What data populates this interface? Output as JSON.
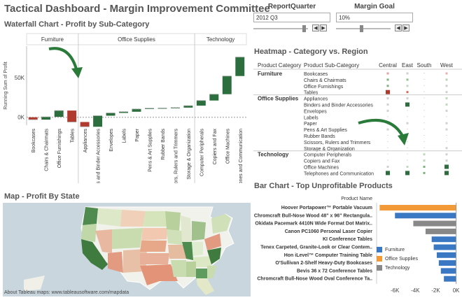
{
  "dashboard_title": "Tactical Dashboard - Margin Improvement Committee",
  "filters": {
    "report_quarter": {
      "label": "ReportQuarter",
      "value": "2012 Q3"
    },
    "margin_goal": {
      "label": "Margin Goal",
      "value": "10%"
    }
  },
  "waterfall": {
    "title": "Waterfall Chart - Profit by Sub-Category",
    "ylabel": "Running Sum of Profit",
    "categories": [
      "Furniture",
      "Office Supplies",
      "Technology"
    ]
  },
  "heatmap": {
    "title": "Heatmap - Category vs. Region",
    "col_headers": [
      "Product Category",
      "Product Sub-Category",
      "Central",
      "East",
      "South",
      "West"
    ]
  },
  "map": {
    "title": "Map - Profit By State",
    "footer": "About Tableau maps: www.tableausoftware.com/mapdata"
  },
  "bar": {
    "title": "Bar Chart - Top Unprofitable Products",
    "axis_header": "Product Name",
    "legend": [
      {
        "label": "Furniture",
        "color": "#3b78c3"
      },
      {
        "label": "Office Supplies",
        "color": "#f29a38"
      },
      {
        "label": "Technology",
        "color": "#888888"
      }
    ]
  },
  "chart_data": [
    {
      "type": "bar",
      "title": "Waterfall Chart - Profit by Sub-Category",
      "ylabel": "Running Sum of Profit",
      "ticks": [
        "0K",
        "50K"
      ],
      "groups": [
        {
          "name": "Furniture",
          "categories": [
            "Bookcases",
            "Chairs & Chairmats",
            "Office Furnishings",
            "Tables"
          ]
        },
        {
          "name": "Office Supplies",
          "categories": [
            "Appliances",
            "Binders and Binder Accessories",
            "Envelopes",
            "Labels",
            "Paper",
            "Pens & Art Supplies",
            "Rubber Bands",
            "Scissors, Rulers and Trimmers",
            "Storage & Organization"
          ]
        },
        {
          "name": "Technology",
          "categories": [
            "Computer Peripherals",
            "Copiers and Fax",
            "Office Machines",
            "Telephones and Communication"
          ]
        }
      ],
      "categories": [
        "Bookcases",
        "Chairs & Chairmats",
        "Office Furnishings",
        "Tables",
        "Appliances",
        "Binders and Binder Accessories",
        "Envelopes",
        "Labels",
        "Paper",
        "Pens & Art Supplies",
        "Rubber Bands",
        "Scissors, Rulers and Trimmers",
        "Storage & Organization",
        "Computer Peripherals",
        "Copiers and Fax",
        "Office Machines",
        "Telephones and Communication"
      ],
      "values": [
        -3000,
        3500,
        8000,
        -14500,
        -6000,
        14000,
        3500,
        1500,
        3500,
        1000,
        200,
        500,
        2500,
        6500,
        8000,
        23000,
        24000
      ],
      "colors": [
        "#b03a2e",
        "#2d6e3e",
        "#2d6e3e",
        "#b03a2e",
        "#b03a2e",
        "#2d6e3e",
        "#2d6e3e",
        "#2d6e3e",
        "#2d6e3e",
        "#2d6e3e",
        "#2d6e3e",
        "#2d6e3e",
        "#2d6e3e",
        "#2d6e3e",
        "#2d6e3e",
        "#2d6e3e",
        "#2d6e3e"
      ],
      "ylim": [
        -10000,
        90000
      ]
    },
    {
      "type": "heatmap",
      "title": "Heatmap - Category vs. Region",
      "columns": [
        "Central",
        "East",
        "South",
        "West"
      ],
      "rows": [
        {
          "category": "Furniture",
          "sub": "Bookcases",
          "cells": [
            "#e4a0a0",
            "#cfcfcf",
            "",
            "#e8b0b0"
          ]
        },
        {
          "sub": "Chairs & Chairmats",
          "cells": [
            "#7fb07f",
            "#8fbf8f",
            "",
            "#b8d3b8"
          ]
        },
        {
          "sub": "Office Furnishings",
          "cells": [
            "#7fb07f",
            "#c0d8c0",
            "",
            "#cfcfcf"
          ]
        },
        {
          "sub": "Tables",
          "cells": [
            "#b03a2e",
            "#d06a5a",
            "",
            "#cfcfcf"
          ]
        },
        {
          "category": "Office Supplies",
          "sub": "Appliances",
          "cells": [
            "#d0d0d0",
            "#d0d0d0",
            "",
            "#c0d8c0"
          ]
        },
        {
          "sub": "Binders and Binder Accessories",
          "cells": [
            "#d0d0d0",
            "#2d6e3e",
            "",
            "#c0d8c0"
          ]
        },
        {
          "sub": "Envelopes",
          "cells": [
            "#d0d0d0",
            "",
            "",
            "#d0d0d0"
          ]
        },
        {
          "sub": "Labels",
          "cells": [
            "",
            "",
            "",
            ""
          ]
        },
        {
          "sub": "Paper",
          "cells": [
            "#d0d0d0",
            "#d0d0d0",
            "",
            "#d0d0d0"
          ]
        },
        {
          "sub": "Pens & Art Supplies",
          "cells": [
            "#d0d0d0",
            "",
            "",
            "#d0d0d0"
          ]
        },
        {
          "sub": "Rubber Bands",
          "cells": [
            "",
            "",
            "",
            ""
          ]
        },
        {
          "sub": "Scissors, Rulers and Trimmers",
          "cells": [
            "",
            "",
            "",
            ""
          ]
        },
        {
          "sub": "Storage & Organization",
          "cells": [
            "",
            "",
            "",
            "#d0d0d0"
          ]
        },
        {
          "category": "Technology",
          "sub": "Computer Peripherals",
          "cells": [
            "",
            "",
            "#c0d8c0",
            "#d0d0d0"
          ]
        },
        {
          "sub": "Copiers and Fax",
          "cells": [
            "",
            "",
            "#c0d8c0",
            "#d0d0d0"
          ]
        },
        {
          "sub": "Office Machines",
          "cells": [
            "#d0d0d0",
            "#c0d8c0",
            "#7fb07f",
            "#2d6e3e"
          ]
        },
        {
          "sub": "Telephones and Communication",
          "cells": [
            "#2d6e3e",
            "#2d6e3e",
            "#7fb07f",
            "#2d6e3e"
          ]
        }
      ]
    },
    {
      "type": "bar",
      "title": "Bar Chart - Top Unprofitable Products",
      "categories": [
        "Hoover Portapower™ Portable Vacuum",
        "Chromcraft Bull-Nose Wood 48\" x 96\" Rectangula..",
        "Okidata Pacemark 4410N Wide Format Dot Matrix..",
        "Canon PC1060 Personal Laser Copier",
        "KI Conference Tables",
        "Tenex Carpeted, Granite-Look or Clear Contem..",
        "Hon iLevel™ Computer Training Table",
        "O'Sullivan 2-Shelf Heavy-Duty Bookcases",
        "Bevis 36 x 72 Conference Tables",
        "Chromcraft Bull-Nose Wood Oval Conference Ta.."
      ],
      "values": [
        -7500,
        -6000,
        -4200,
        -3000,
        -2400,
        -2200,
        -1900,
        -1700,
        -1500,
        -1200
      ],
      "series_of": [
        "Office Supplies",
        "Furniture",
        "Technology",
        "Technology",
        "Furniture",
        "Furniture",
        "Furniture",
        "Furniture",
        "Furniture",
        "Furniture"
      ],
      "ticks": [
        "-6K",
        "-4K",
        "-2K",
        "0K"
      ],
      "xlim": [
        -7800,
        300
      ]
    }
  ]
}
